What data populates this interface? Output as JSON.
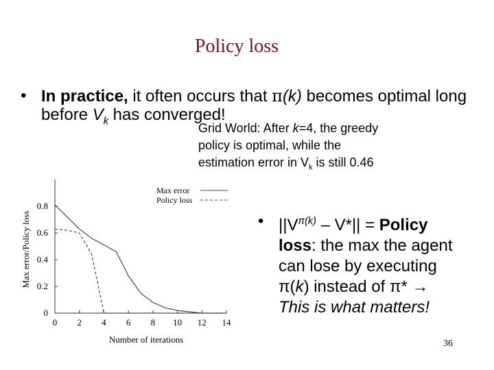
{
  "title": "Policy loss",
  "bullet1": {
    "bold_prefix": "In practice,",
    "text_a": " it often occurs that ",
    "pi": "π",
    "k_expr": "(k)",
    "text_b": " becomes optimal long",
    "line2_a": "before ",
    "V": "V",
    "k_sub": "k",
    "line2_b": " has converged!"
  },
  "caption": {
    "line1_a": "Grid World: After ",
    "k": "k",
    "line1_b": "=4, the greedy",
    "line2": "policy is optimal, while the",
    "line3_a": "estimation error in V",
    "line3_sub": "k",
    "line3_b": " is still 0.46"
  },
  "bullet2": {
    "l1_a": "||V",
    "l1_sup": "π(k)",
    "l1_b": " – V*|| = ",
    "l1_bold": "Policy",
    "l2_bold": "loss",
    "l2_rest": ": the max the agent",
    "l3": "can lose by executing",
    "l4_a": "π(",
    "l4_k": "k",
    "l4_b": ") instead of π* →",
    "l5": "This is what matters!"
  },
  "slide_number": "36",
  "chart_data": {
    "type": "line",
    "xlabel": "Number of iterations",
    "ylabel": "Max error/Policy loss",
    "xlim": [
      0,
      14
    ],
    "ylim": [
      0,
      1.0
    ],
    "x_ticks": [
      "0",
      "2",
      "4",
      "6",
      "8",
      "10",
      "12",
      "14"
    ],
    "y_ticks": [
      "0",
      "0.2",
      "0.4",
      "0.6",
      "0.8"
    ],
    "series": [
      {
        "name": "Max error",
        "style": "solid",
        "x": [
          0,
          1,
          2,
          3,
          4,
          5,
          6,
          7,
          8,
          9,
          10,
          11,
          12,
          13,
          14
        ],
        "y": [
          0.81,
          0.72,
          0.63,
          0.56,
          0.51,
          0.46,
          0.28,
          0.15,
          0.08,
          0.04,
          0.02,
          0.01,
          0.0,
          0.0,
          0.0
        ]
      },
      {
        "name": "Policy loss",
        "style": "dashed",
        "x": [
          0,
          1,
          2,
          3,
          4,
          5,
          6,
          7,
          8,
          9,
          10,
          11,
          12,
          13,
          14
        ],
        "y": [
          0.63,
          0.62,
          0.6,
          0.44,
          0.0,
          0.0,
          0.0,
          0.0,
          0.0,
          0.0,
          0.0,
          0.0,
          0.0,
          0.0,
          0.0
        ]
      }
    ],
    "legend": "top-right",
    "colors": {
      "max_error": "#444444",
      "policy_loss": "#444444"
    }
  }
}
